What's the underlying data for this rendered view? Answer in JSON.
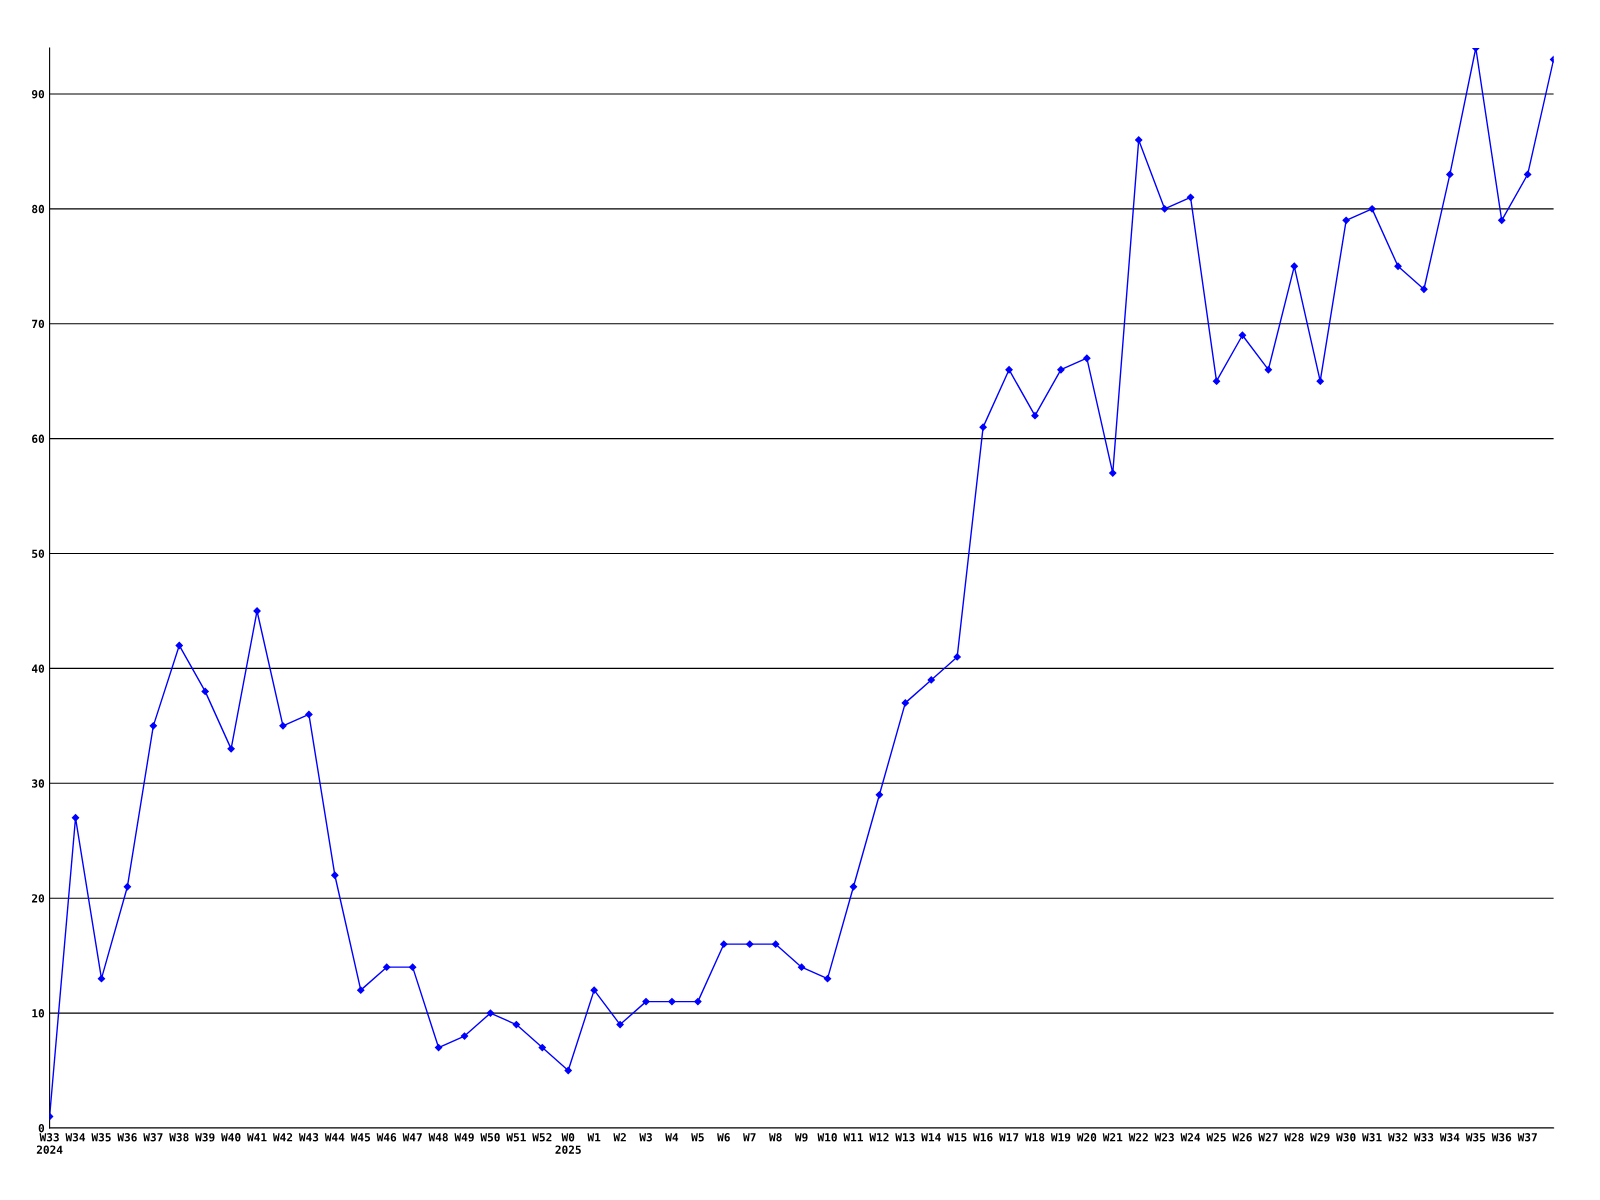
{
  "chart_data": {
    "type": "line",
    "categories": [
      "W33\n2024",
      "W34",
      "W35",
      "W36",
      "W37",
      "W38",
      "W39",
      "W40",
      "W41",
      "W42",
      "W43",
      "W44",
      "W45",
      "W46",
      "W47",
      "W48",
      "W49",
      "W50",
      "W51",
      "W52",
      "W0\n2025",
      "W1",
      "W2",
      "W3",
      "W4",
      "W5",
      "W6",
      "W7",
      "W8",
      "W9",
      "W10",
      "W11",
      "W12",
      "W13",
      "W14",
      "W15",
      "W16",
      "W17",
      "W18",
      "W19",
      "W20",
      "W21",
      "W22",
      "W23",
      "W24",
      "W25",
      "W26",
      "W27",
      "W28",
      "W29",
      "W30",
      "W31",
      "W32",
      "W33",
      "W34",
      "W35",
      "W36",
      "W37",
      null
    ],
    "series": [
      {
        "color": "#0000ff",
        "values": [
          1,
          27,
          13,
          21,
          35,
          42,
          38,
          33,
          45,
          35,
          36,
          22,
          12,
          14,
          14,
          7,
          8,
          10,
          9,
          7,
          5,
          12,
          9,
          11,
          11,
          11,
          16,
          16,
          16,
          14,
          13,
          21,
          29,
          37,
          39,
          41,
          61,
          66,
          62,
          66,
          67,
          57,
          86,
          80,
          81,
          65,
          69,
          66,
          75,
          65,
          79,
          80,
          75,
          73,
          83,
          94,
          79,
          83,
          93
        ]
      }
    ],
    "ylim": [
      0,
      94
    ],
    "yticks": [
      0,
      10,
      20,
      30,
      40,
      50,
      60,
      70,
      80,
      90
    ],
    "grid": "y",
    "marker": "diamond",
    "line_style": "solid",
    "legend": false
  }
}
